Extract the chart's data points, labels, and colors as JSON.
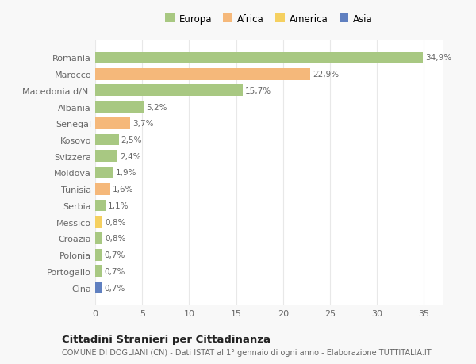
{
  "categories": [
    "Romania",
    "Marocco",
    "Macedonia d/N.",
    "Albania",
    "Senegal",
    "Kosovo",
    "Svizzera",
    "Moldova",
    "Tunisia",
    "Serbia",
    "Messico",
    "Croazia",
    "Polonia",
    "Portogallo",
    "Cina"
  ],
  "values": [
    34.9,
    22.9,
    15.7,
    5.2,
    3.7,
    2.5,
    2.4,
    1.9,
    1.6,
    1.1,
    0.8,
    0.8,
    0.7,
    0.7,
    0.7
  ],
  "labels": [
    "34,9%",
    "22,9%",
    "15,7%",
    "5,2%",
    "3,7%",
    "2,5%",
    "2,4%",
    "1,9%",
    "1,6%",
    "1,1%",
    "0,8%",
    "0,8%",
    "0,7%",
    "0,7%",
    "0,7%"
  ],
  "colors": [
    "#a8c882",
    "#f5b87a",
    "#a8c882",
    "#a8c882",
    "#f5b87a",
    "#a8c882",
    "#a8c882",
    "#a8c882",
    "#f5b87a",
    "#a8c882",
    "#f5d060",
    "#a8c882",
    "#a8c882",
    "#a8c882",
    "#6080c0"
  ],
  "legend_labels": [
    "Europa",
    "Africa",
    "America",
    "Asia"
  ],
  "legend_colors": [
    "#a8c882",
    "#f5b87a",
    "#f5d060",
    "#6080c0"
  ],
  "title": "Cittadini Stranieri per Cittadinanza",
  "subtitle": "COMUNE DI DOGLIANI (CN) - Dati ISTAT al 1° gennaio di ogni anno - Elaborazione TUTTITALIA.IT",
  "xlim": [
    0,
    37
  ],
  "xticks": [
    0,
    5,
    10,
    15,
    20,
    25,
    30,
    35
  ],
  "background_color": "#f8f8f8",
  "plot_bg_color": "#ffffff",
  "grid_color": "#e8e8e8"
}
